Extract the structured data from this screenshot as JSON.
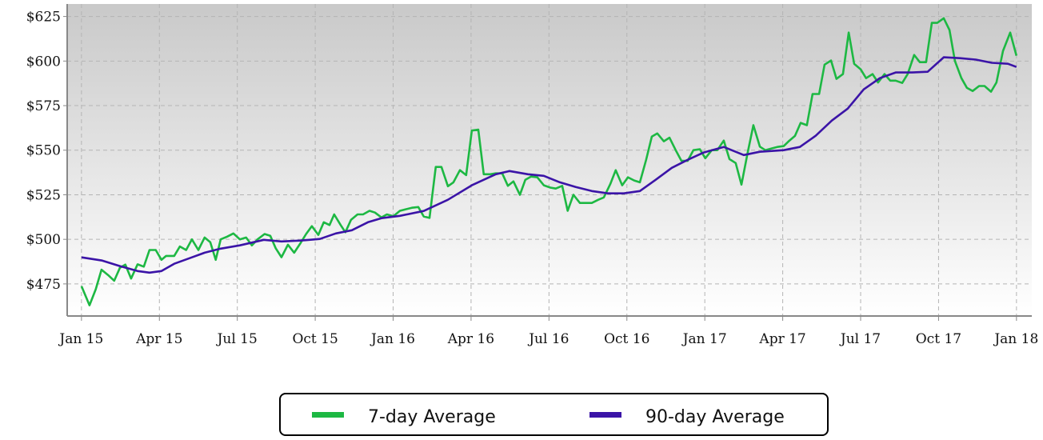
{
  "chart_data": {
    "type": "line",
    "xlim": [
      -0.55,
      36.59
    ],
    "xticks": [
      {
        "value": 0,
        "label": "Jan 15"
      },
      {
        "value": 3,
        "label": "Apr 15"
      },
      {
        "value": 6,
        "label": "Jul 15"
      },
      {
        "value": 9,
        "label": "Oct 15"
      },
      {
        "value": 12,
        "label": "Jan 16"
      },
      {
        "value": 15,
        "label": "Apr 16"
      },
      {
        "value": 18,
        "label": "Jul 16"
      },
      {
        "value": 21,
        "label": "Oct 16"
      },
      {
        "value": 24,
        "label": "Jan 17"
      },
      {
        "value": 27,
        "label": "Apr 17"
      },
      {
        "value": 30,
        "label": "Jul 17"
      },
      {
        "value": 33,
        "label": "Oct 17"
      },
      {
        "value": 36,
        "label": "Jan 18"
      }
    ],
    "ylim": [
      457,
      632
    ],
    "yticks": [
      {
        "value": 475,
        "label": "$475"
      },
      {
        "value": 500,
        "label": "$500"
      },
      {
        "value": 525,
        "label": "$525"
      },
      {
        "value": 550,
        "label": "$550"
      },
      {
        "value": 575,
        "label": "$575"
      },
      {
        "value": 600,
        "label": "$600"
      },
      {
        "value": 625,
        "label": "$625"
      }
    ],
    "grid": true,
    "legend": "bottom",
    "series": [
      {
        "name": "7-day Average",
        "color": "#1db843",
        "x": [
          0,
          0.31,
          0.55,
          0.77,
          1.02,
          1.26,
          1.48,
          1.69,
          1.91,
          2.16,
          2.4,
          2.62,
          2.86,
          3.08,
          3.26,
          3.57,
          3.79,
          4.03,
          4.25,
          4.5,
          4.74,
          4.96,
          5.17,
          5.36,
          5.61,
          5.85,
          6.1,
          6.34,
          6.56,
          6.78,
          7.05,
          7.27,
          7.48,
          7.7,
          7.95,
          8.19,
          8.44,
          8.65,
          8.87,
          9.12,
          9.33,
          9.55,
          9.73,
          9.98,
          10.16,
          10.38,
          10.63,
          10.84,
          11.09,
          11.3,
          11.55,
          11.76,
          12.01,
          12.26,
          12.47,
          12.72,
          12.97,
          13.18,
          13.4,
          13.64,
          13.86,
          14.11,
          14.32,
          14.57,
          14.81,
          15.03,
          15.28,
          15.49,
          15.74,
          15.95,
          16.2,
          16.42,
          16.63,
          16.88,
          17.09,
          17.31,
          17.55,
          17.8,
          18.05,
          18.26,
          18.51,
          18.72,
          18.94,
          19.19,
          19.43,
          19.65,
          19.9,
          20.11,
          20.36,
          20.57,
          20.82,
          21.04,
          21.28,
          21.5,
          21.74,
          21.96,
          22.17,
          22.42,
          22.64,
          22.88,
          23.1,
          23.34,
          23.56,
          23.81,
          24.02,
          24.27,
          24.48,
          24.73,
          24.95,
          25.19,
          25.41,
          25.65,
          25.87,
          26.12,
          26.33,
          26.58,
          26.79,
          27.04,
          27.26,
          27.47,
          27.69,
          27.93,
          28.15,
          28.4,
          28.61,
          28.86,
          29.07,
          29.32,
          29.54,
          29.75,
          30,
          30.21,
          30.46,
          30.67,
          30.92,
          31.14,
          31.35,
          31.6,
          31.81,
          32.06,
          32.28,
          32.52,
          32.74,
          32.95,
          33.2,
          33.42,
          33.63,
          33.88,
          34.09,
          34.31,
          34.56,
          34.77,
          35.02,
          35.23,
          35.48,
          35.76,
          36
        ],
        "values": [
          473.7,
          463,
          472,
          483,
          480,
          476.8,
          484,
          485.8,
          478,
          486,
          484.7,
          494,
          494,
          488.5,
          490.7,
          490.7,
          496,
          494,
          500,
          494,
          501,
          498.4,
          488.5,
          500,
          501.5,
          503.3,
          500,
          501,
          496.6,
          500,
          503,
          502,
          495,
          490,
          497,
          492.5,
          498,
          503,
          507.4,
          502.5,
          509.6,
          508,
          514,
          508,
          504,
          511,
          514,
          514,
          516,
          515,
          512.3,
          514,
          513,
          516,
          516.8,
          517.7,
          518.1,
          512.8,
          512,
          540.6,
          540.6,
          529.8,
          532,
          538.8,
          536,
          561,
          561.5,
          536.5,
          536.5,
          537,
          537,
          530,
          532.5,
          525,
          533.4,
          535.2,
          534.8,
          530.3,
          529,
          528.5,
          530,
          516,
          525,
          520.4,
          520.4,
          520.4,
          522.2,
          523.5,
          531,
          538.8,
          530.3,
          534.8,
          533,
          532,
          544.6,
          557.6,
          559.4,
          555,
          557,
          550,
          544,
          544,
          550,
          550.5,
          545.5,
          550,
          550,
          555.4,
          545,
          542.8,
          530.7,
          548.7,
          564,
          552,
          550,
          551,
          551.8,
          552.3,
          555.4,
          558,
          565.3,
          564,
          581.5,
          581.5,
          598,
          600.3,
          590,
          592.7,
          616,
          598.5,
          595.4,
          590.4,
          592.7,
          588,
          592.7,
          589,
          589,
          587.7,
          592.7,
          603.4,
          599.4,
          599.4,
          621.4,
          621.4,
          624,
          617.4,
          600,
          590.4,
          585,
          583.2,
          586,
          586,
          582.8,
          588,
          605.7,
          616,
          603
        ]
      },
      {
        "name": "90-day Average",
        "color": "#3b14a7",
        "x": [
          0,
          0.8,
          1.48,
          2.16,
          2.62,
          3.08,
          3.57,
          4.25,
          4.74,
          5.36,
          6.1,
          7.02,
          7.7,
          8.44,
          9.18,
          9.79,
          10.41,
          11.03,
          11.55,
          12.26,
          13.18,
          14.11,
          15.03,
          15.95,
          16.48,
          17.19,
          17.8,
          18.42,
          19.03,
          19.65,
          20.27,
          20.88,
          21.5,
          22.11,
          22.73,
          23.34,
          23.96,
          24.73,
          25.5,
          26.12,
          27.04,
          27.66,
          28.27,
          28.89,
          29.5,
          30.12,
          30.74,
          31.35,
          31.97,
          32.58,
          33.2,
          33.82,
          34.43,
          35.05,
          35.67,
          36
        ],
        "values": [
          489.9,
          488.1,
          485,
          482.2,
          481.3,
          482.2,
          486.3,
          489.9,
          492.5,
          494.8,
          496.6,
          499.7,
          498.8,
          499.3,
          500.2,
          503.3,
          505.1,
          509.6,
          511.9,
          513.2,
          515.9,
          522.2,
          530.3,
          536.5,
          538.3,
          536.5,
          535.6,
          532,
          529.4,
          527.1,
          525.8,
          525.8,
          527.1,
          533.4,
          540.1,
          544.6,
          548.7,
          551.8,
          547.3,
          549.1,
          550,
          551.8,
          558.1,
          566.6,
          573.3,
          584.1,
          590.4,
          593.6,
          593.6,
          594,
          602.1,
          601.6,
          600.8,
          599,
          598.5,
          596.7
        ]
      }
    ]
  }
}
